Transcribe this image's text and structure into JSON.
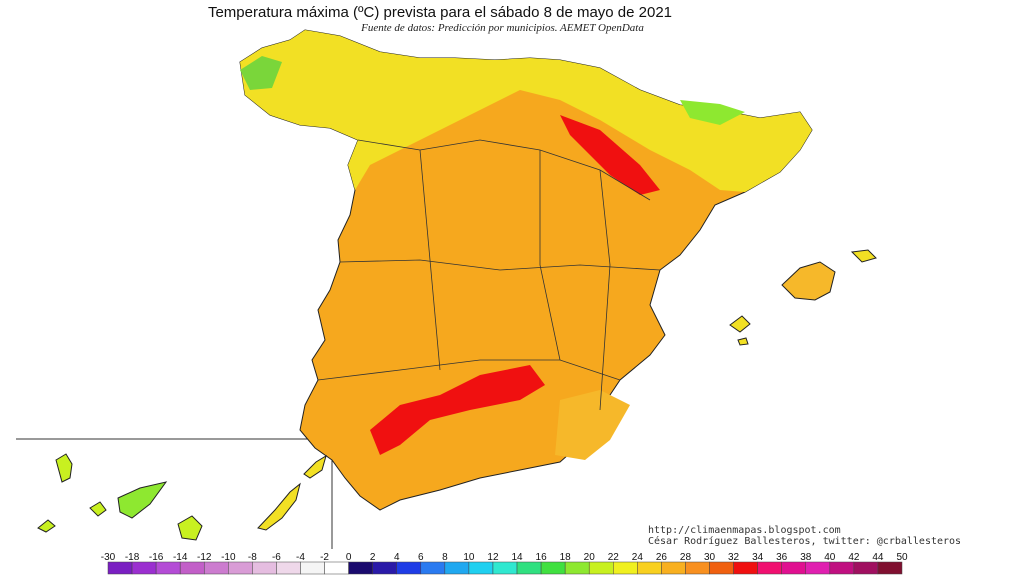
{
  "title": "Temperatura máxima (ºC) prevista para el sábado 8 de mayo de 2021",
  "subtitle": "Fuente de datos: Predicción por municipios. AEMET OpenData",
  "credits": {
    "website": "http://climaenmapas.blogspot.com",
    "author": "César Rodríguez Ballesteros, twitter: @crballesteros"
  },
  "map": {
    "region": "Península Ibérica (España), Baleares y Canarias",
    "variable": "Temperatura máxima",
    "unit": "ºC"
  },
  "legend": {
    "labels": [
      "-30",
      "-18",
      "-16",
      "-14",
      "-12",
      "-10",
      "-8",
      "-6",
      "-4",
      "-2",
      "0",
      "2",
      "4",
      "6",
      "8",
      "10",
      "12",
      "14",
      "16",
      "18",
      "20",
      "22",
      "24",
      "26",
      "28",
      "30",
      "32",
      "34",
      "36",
      "38",
      "40",
      "42",
      "44",
      "50"
    ],
    "colors": [
      "#7a1fc2",
      "#9b2fd0",
      "#b44cd6",
      "#c25fc8",
      "#cc7ccf",
      "#d99cd6",
      "#e5bde0",
      "#efd8ea",
      "#f5f5f5",
      "#ffffff",
      "#1a0a6e",
      "#2a1aa8",
      "#1e3ce6",
      "#2a7af0",
      "#20a8f0",
      "#20d0f0",
      "#30e8d0",
      "#30e080",
      "#40e040",
      "#8ee830",
      "#c8f020",
      "#f0f020",
      "#f8d020",
      "#f8b020",
      "#f89020",
      "#f06010",
      "#f01010",
      "#f01070",
      "#e01090",
      "#e020b0",
      "#c01080",
      "#a01060",
      "#801030"
    ]
  }
}
